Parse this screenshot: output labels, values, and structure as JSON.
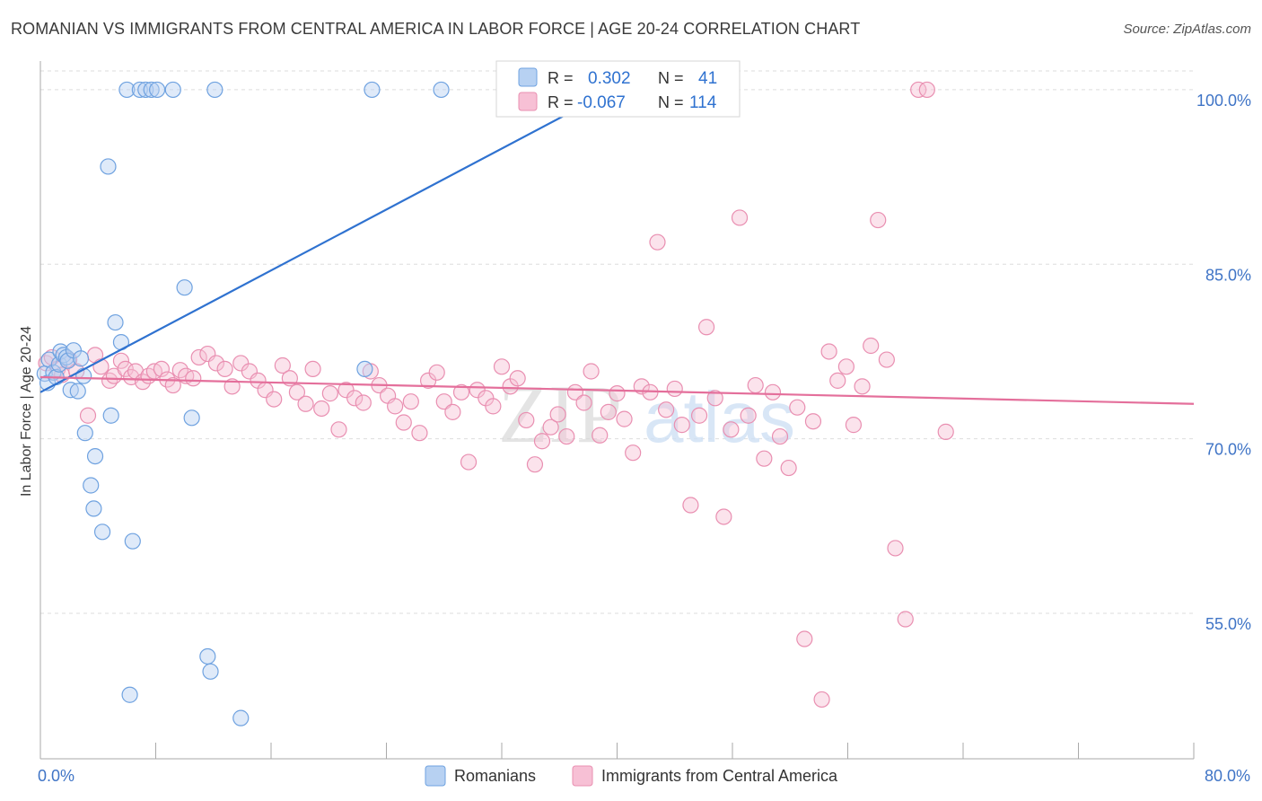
{
  "title": "ROMANIAN VS IMMIGRANTS FROM CENTRAL AMERICA IN LABOR FORCE | AGE 20-24 CORRELATION CHART",
  "source": "Source: ZipAtlas.com",
  "colors": {
    "romanians": "#6fa2e0",
    "romanians_fill": "#b7d1f2",
    "romanians_line": "#2f72d0",
    "immigrants": "#e98fb1",
    "immigrants_fill": "#f7c0d5",
    "immigrants_line": "#e46f9b",
    "axis_label": "#3f74c6",
    "grid": "#dddddd"
  },
  "chart_data": {
    "type": "scatter",
    "title": "ROMANIAN VS IMMIGRANTS FROM CENTRAL AMERICA IN LABOR FORCE | AGE 20-24 CORRELATION CHART",
    "xlabel": "",
    "ylabel": "In Labor Force | Age 20-24",
    "xlim": [
      0,
      80
    ],
    "ylim": [
      42.5,
      102
    ],
    "x_tick_labels": [
      "0.0%",
      "80.0%"
    ],
    "y_ticks": [
      55,
      70,
      85,
      100
    ],
    "y_tick_labels": [
      "55.0%",
      "70.0%",
      "85.0%",
      "100.0%"
    ],
    "grid": true,
    "watermark": "ZIPatlas",
    "legend_stats": [
      {
        "r_label": "R =",
        "r_value": "0.302",
        "n_label": "N =",
        "n_value": "41"
      },
      {
        "r_label": "R =",
        "r_value": "-0.067",
        "n_label": "N =",
        "n_value": "114"
      }
    ],
    "legend_bottom": [
      "Romanians",
      "Immigrants from Central America"
    ],
    "series": [
      {
        "name": "Romanians",
        "trend": {
          "x": [
            0,
            40.5
          ],
          "y": [
            74.0,
            100.5
          ]
        },
        "x": [
          0.3,
          0.6,
          0.5,
          0.9,
          1.1,
          1.3,
          1.4,
          1.6,
          1.8,
          1.9,
          2.1,
          2.3,
          2.6,
          2.8,
          3.0,
          3.1,
          3.5,
          3.7,
          3.8,
          4.3,
          4.7,
          4.9,
          5.2,
          5.6,
          6.0,
          6.2,
          6.4,
          6.9,
          7.3,
          7.7,
          8.1,
          9.2,
          10.0,
          10.5,
          11.6,
          11.8,
          12.1,
          13.9,
          22.5,
          23.0,
          27.8
        ],
        "y": [
          75.6,
          76.8,
          74.8,
          75.7,
          75.3,
          76.4,
          77.5,
          77.2,
          77.0,
          76.7,
          74.2,
          77.6,
          74.1,
          76.9,
          75.4,
          70.5,
          66.0,
          64.0,
          68.5,
          62.0,
          93.4,
          72.0,
          80.0,
          78.3,
          100.0,
          48.0,
          61.2,
          100.0,
          100.0,
          100.0,
          100.0,
          100.0,
          83.0,
          71.8,
          51.3,
          50.0,
          100.0,
          46.0,
          76.0,
          100.0,
          100.0
        ]
      },
      {
        "name": "Immigrants from Central America",
        "trend": {
          "x": [
            0,
            80
          ],
          "y": [
            75.3,
            73.0
          ]
        },
        "x": [
          0.4,
          0.8,
          1.2,
          1.5,
          2.0,
          2.5,
          3.3,
          3.8,
          4.2,
          4.8,
          5.1,
          5.6,
          5.9,
          6.3,
          6.6,
          7.1,
          7.5,
          7.9,
          8.4,
          8.8,
          9.2,
          9.7,
          10.1,
          10.6,
          11.0,
          11.6,
          12.2,
          12.8,
          13.3,
          13.9,
          14.5,
          15.1,
          15.6,
          16.2,
          16.8,
          17.3,
          17.8,
          18.4,
          18.9,
          19.5,
          20.1,
          20.7,
          21.2,
          21.8,
          22.4,
          22.9,
          23.5,
          24.1,
          24.6,
          25.2,
          25.7,
          26.3,
          26.9,
          27.5,
          28.0,
          28.6,
          29.2,
          29.7,
          30.3,
          30.9,
          31.4,
          32.0,
          32.6,
          33.1,
          33.7,
          34.3,
          34.8,
          35.4,
          35.9,
          36.5,
          37.1,
          37.7,
          38.2,
          38.8,
          39.4,
          40.0,
          40.5,
          41.1,
          41.7,
          42.3,
          42.8,
          43.4,
          44.0,
          44.5,
          45.1,
          45.7,
          46.2,
          46.8,
          47.4,
          47.9,
          48.5,
          49.1,
          49.6,
          50.2,
          50.8,
          51.3,
          51.9,
          52.5,
          53.0,
          53.6,
          54.2,
          54.7,
          55.3,
          55.9,
          56.4,
          57.0,
          57.6,
          58.1,
          58.7,
          59.3,
          60.0,
          60.9,
          61.5,
          62.8
        ],
        "y": [
          76.5,
          77.0,
          76.0,
          75.5,
          76.8,
          75.8,
          72.0,
          77.2,
          76.2,
          75.0,
          75.4,
          76.7,
          76.0,
          75.3,
          75.8,
          74.9,
          75.4,
          75.8,
          76.0,
          75.1,
          74.6,
          75.9,
          75.4,
          75.2,
          77.0,
          77.3,
          76.5,
          76.0,
          74.5,
          76.5,
          75.8,
          75.0,
          74.2,
          73.4,
          76.3,
          75.2,
          74.0,
          73.0,
          76.0,
          72.6,
          73.9,
          70.8,
          74.2,
          73.5,
          73.1,
          75.8,
          74.6,
          73.7,
          72.8,
          71.4,
          73.2,
          70.5,
          75.0,
          75.7,
          73.2,
          72.3,
          74.0,
          68.0,
          74.2,
          73.5,
          72.8,
          76.2,
          74.5,
          75.2,
          71.6,
          67.8,
          69.8,
          71.0,
          72.1,
          70.2,
          74.0,
          73.1,
          75.8,
          70.3,
          72.3,
          73.9,
          71.7,
          68.8,
          74.5,
          74.0,
          86.9,
          72.5,
          74.3,
          71.2,
          64.3,
          72.0,
          79.6,
          73.5,
          63.3,
          70.8,
          89.0,
          72.0,
          74.6,
          68.3,
          74.0,
          70.2,
          67.5,
          72.7,
          52.8,
          71.5,
          47.6,
          77.5,
          75.0,
          76.2,
          71.2,
          74.5,
          78.0,
          88.8,
          76.8,
          60.6,
          54.5,
          100.0,
          100.0,
          70.6
        ]
      }
    ]
  }
}
